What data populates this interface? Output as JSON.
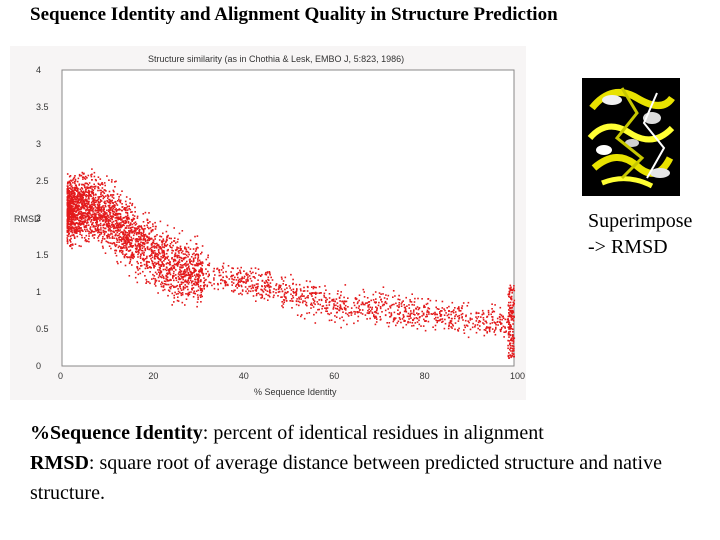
{
  "slide": {
    "title": "Sequence Identity and Alignment Quality in Structure Prediction",
    "caption_line1": "Superimpose",
    "caption_line2": "-> RMSD",
    "def1_term": "%Sequence Identity",
    "def1_text": ": percent of identical residues in alignment",
    "def2_term": "RMSD",
    "def2_text": ": square root of average distance between predicted structure and native structure."
  },
  "image": {
    "icon": "protein-structure-icon"
  },
  "chart_data": {
    "type": "scatter",
    "title": "Structure similarity (as in Chothia & Lesk, EMBO J, 5:823, 1986)",
    "xlabel": "% Sequence Identity",
    "ylabel": "RMSD",
    "xlim": [
      0,
      100
    ],
    "ylim": [
      0,
      4
    ],
    "xticks": [
      "0",
      "20",
      "40",
      "60",
      "80",
      "100"
    ],
    "yticks": [
      "0",
      "0.5",
      "1",
      "1.5",
      "2",
      "2.5",
      "3",
      "3.5",
      "4"
    ],
    "point_color": "#e31a1c",
    "grid": false,
    "trend": [
      {
        "x": 2,
        "y": 2.1
      },
      {
        "x": 5,
        "y": 2.15
      },
      {
        "x": 8,
        "y": 2.1
      },
      {
        "x": 12,
        "y": 1.95
      },
      {
        "x": 16,
        "y": 1.7
      },
      {
        "x": 20,
        "y": 1.55
      },
      {
        "x": 25,
        "y": 1.35
      },
      {
        "x": 30,
        "y": 1.25
      },
      {
        "x": 35,
        "y": 1.2
      },
      {
        "x": 40,
        "y": 1.15
      },
      {
        "x": 45,
        "y": 1.1
      },
      {
        "x": 50,
        "y": 1.0
      },
      {
        "x": 55,
        "y": 0.9
      },
      {
        "x": 60,
        "y": 0.85
      },
      {
        "x": 65,
        "y": 0.8
      },
      {
        "x": 70,
        "y": 0.8
      },
      {
        "x": 75,
        "y": 0.75
      },
      {
        "x": 80,
        "y": 0.7
      },
      {
        "x": 85,
        "y": 0.7
      },
      {
        "x": 90,
        "y": 0.65
      },
      {
        "x": 95,
        "y": 0.6
      },
      {
        "x": 99,
        "y": 0.55
      }
    ]
  }
}
